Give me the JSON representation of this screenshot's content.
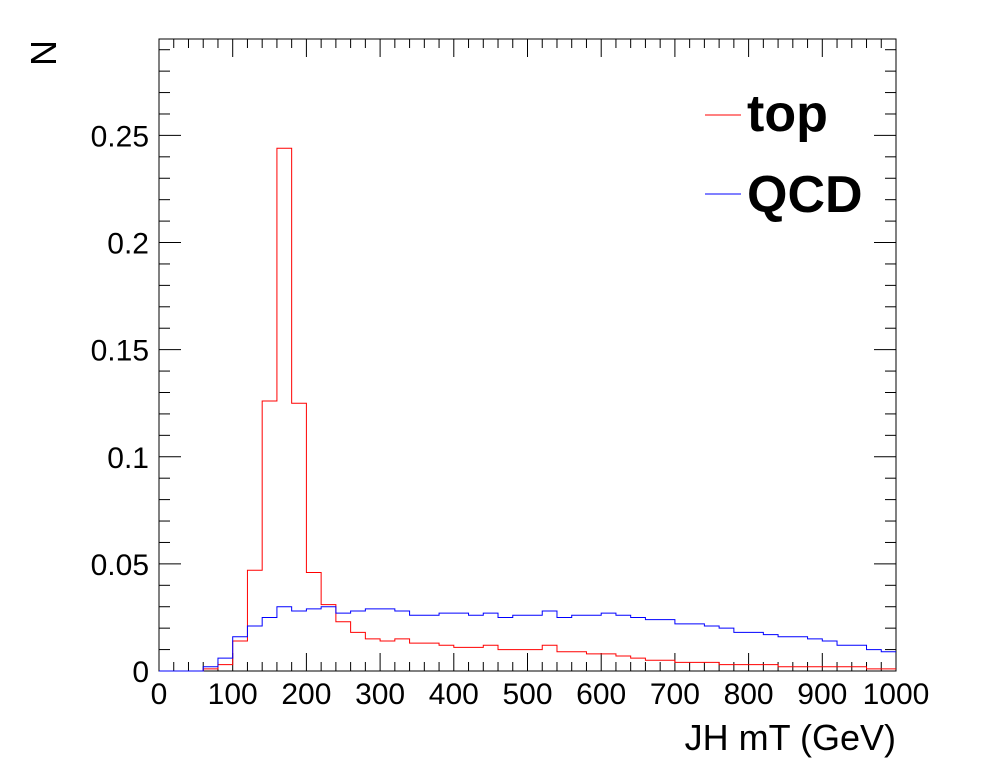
{
  "chart_data": {
    "type": "histogram",
    "xlabel": "JH mT (GeV)",
    "ylabel": "N",
    "xlim": [
      0,
      1000
    ],
    "ylim": [
      0,
      0.295
    ],
    "x_ticks": [
      "0",
      "100",
      "200",
      "300",
      "400",
      "500",
      "600",
      "700",
      "800",
      "900",
      "1000"
    ],
    "y_ticks": [
      "0",
      "0.05",
      "0.1",
      "0.15",
      "0.2",
      "0.25"
    ],
    "bin_width": 20,
    "bin_edges_start": 0,
    "grid": false,
    "legend_position": "top-right",
    "series": [
      {
        "name": "top",
        "color": "#ff0000",
        "values": [
          0,
          0,
          0,
          0.001,
          0.003,
          0.014,
          0.047,
          0.126,
          0.244,
          0.125,
          0.046,
          0.031,
          0.023,
          0.018,
          0.015,
          0.014,
          0.015,
          0.013,
          0.013,
          0.012,
          0.011,
          0.011,
          0.012,
          0.01,
          0.01,
          0.01,
          0.012,
          0.009,
          0.009,
          0.008,
          0.008,
          0.007,
          0.006,
          0.005,
          0.005,
          0.004,
          0.004,
          0.004,
          0.003,
          0.003,
          0.003,
          0.003,
          0.002,
          0.002,
          0.002,
          0.002,
          0.002,
          0.002,
          0.001,
          0.001
        ]
      },
      {
        "name": "QCD",
        "color": "#0000ff",
        "values": [
          0,
          0,
          0,
          0.002,
          0.006,
          0.016,
          0.021,
          0.025,
          0.03,
          0.028,
          0.029,
          0.03,
          0.027,
          0.028,
          0.029,
          0.029,
          0.028,
          0.026,
          0.026,
          0.027,
          0.027,
          0.026,
          0.027,
          0.025,
          0.026,
          0.026,
          0.028,
          0.025,
          0.026,
          0.026,
          0.027,
          0.026,
          0.025,
          0.024,
          0.024,
          0.022,
          0.022,
          0.021,
          0.02,
          0.018,
          0.018,
          0.017,
          0.016,
          0.016,
          0.015,
          0.014,
          0.012,
          0.012,
          0.01,
          0.009
        ]
      }
    ]
  }
}
